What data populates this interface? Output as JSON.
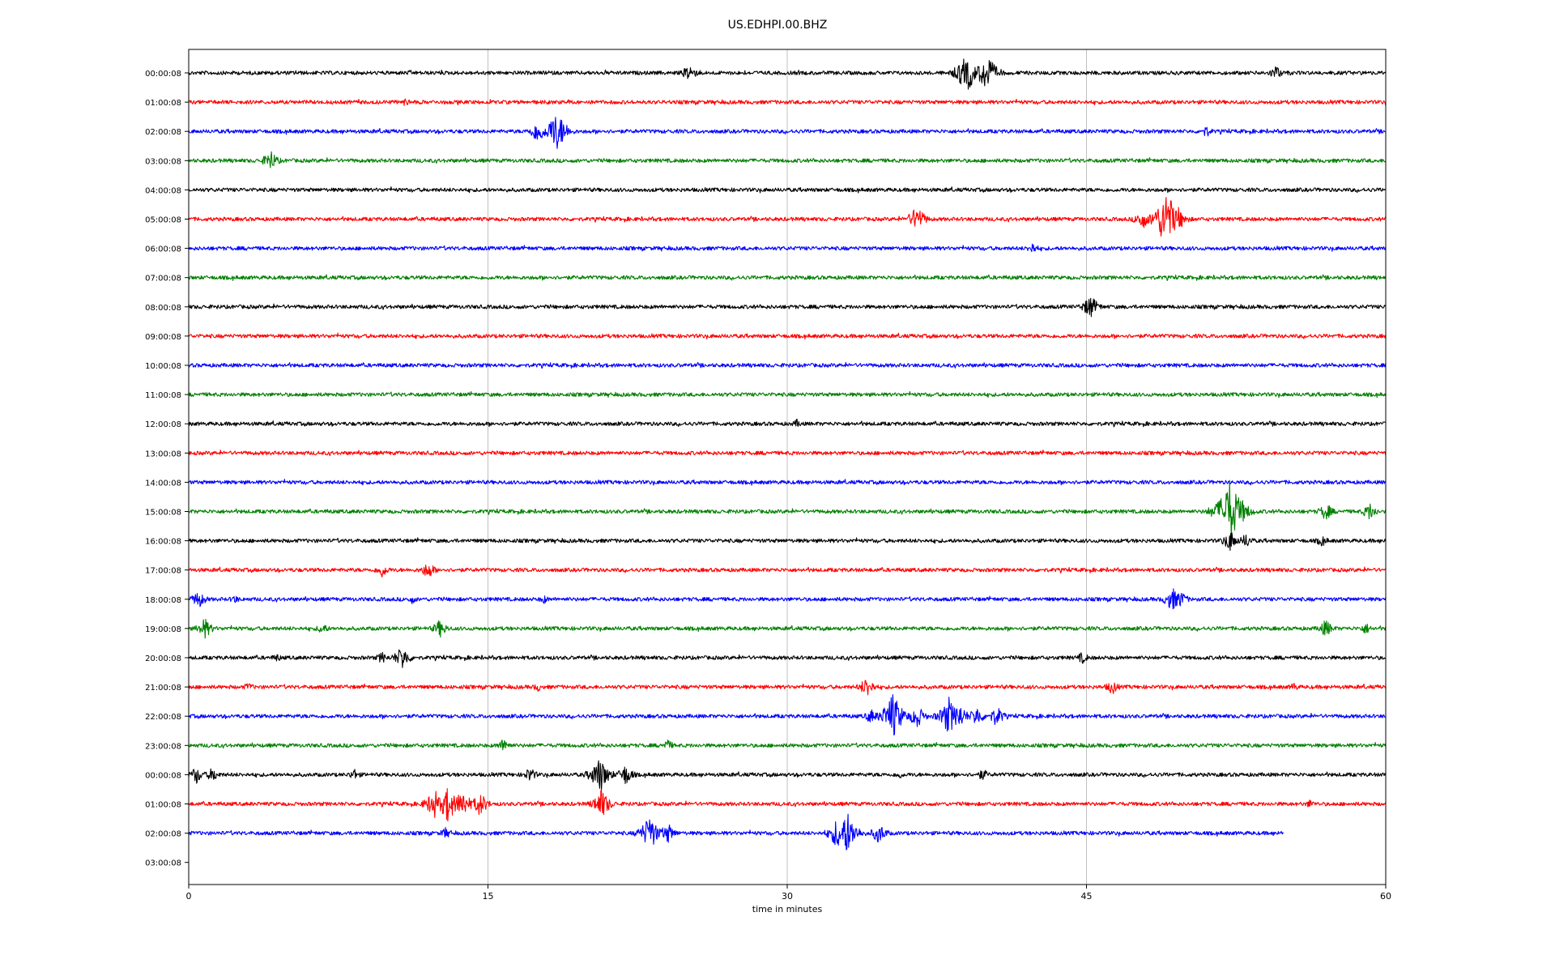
{
  "chart_data": {
    "type": "line",
    "title": "US.EDHPI.00.BHZ",
    "xlabel": "time in minutes",
    "ylabel": "",
    "xlim": [
      0,
      60
    ],
    "x_ticks": [
      0,
      15,
      30,
      45,
      60
    ],
    "grid": "vertical",
    "row_labels": [
      "00:00:08",
      "01:00:08",
      "02:00:08",
      "03:00:08",
      "04:00:08",
      "05:00:08",
      "06:00:08",
      "07:00:08",
      "08:00:08",
      "09:00:08",
      "10:00:08",
      "11:00:08",
      "12:00:08",
      "13:00:08",
      "14:00:08",
      "15:00:08",
      "16:00:08",
      "17:00:08",
      "18:00:08",
      "19:00:08",
      "20:00:08",
      "21:00:08",
      "22:00:08",
      "23:00:08",
      "00:00:08",
      "01:00:08",
      "02:00:08",
      "03:00:08"
    ],
    "row_color_cycle": [
      "#000000",
      "#ff0000",
      "#0000ff",
      "#008000"
    ],
    "traces": [
      {
        "row": 0,
        "end_minute": 60,
        "events": [
          [
            25.1,
            0.6
          ],
          [
            38.8,
            1.0
          ],
          [
            39.1,
            1.1
          ],
          [
            40.0,
            1.3
          ],
          [
            54.5,
            0.5
          ]
        ]
      },
      {
        "row": 1,
        "end_minute": 60,
        "events": [
          [
            10.9,
            0.3
          ]
        ]
      },
      {
        "row": 2,
        "end_minute": 60,
        "events": [
          [
            17.5,
            0.8
          ],
          [
            18.4,
            1.3
          ],
          [
            18.7,
            0.9
          ],
          [
            51.0,
            0.4
          ]
        ]
      },
      {
        "row": 3,
        "end_minute": 60,
        "events": [
          [
            4.1,
            0.7
          ]
        ]
      },
      {
        "row": 4,
        "end_minute": 60,
        "events": []
      },
      {
        "row": 5,
        "end_minute": 60,
        "events": [
          [
            36.5,
            0.9
          ],
          [
            47.8,
            0.7
          ],
          [
            49.0,
            1.9
          ],
          [
            49.6,
            0.8
          ]
        ]
      },
      {
        "row": 6,
        "end_minute": 60,
        "events": [
          [
            42.3,
            0.4
          ]
        ]
      },
      {
        "row": 7,
        "end_minute": 60,
        "events": []
      },
      {
        "row": 8,
        "end_minute": 60,
        "events": [
          [
            45.2,
            0.8
          ]
        ]
      },
      {
        "row": 9,
        "end_minute": 60,
        "events": []
      },
      {
        "row": 10,
        "end_minute": 60,
        "events": []
      },
      {
        "row": 11,
        "end_minute": 60,
        "events": []
      },
      {
        "row": 12,
        "end_minute": 60,
        "events": [
          [
            30.5,
            0.3
          ]
        ]
      },
      {
        "row": 13,
        "end_minute": 60,
        "events": []
      },
      {
        "row": 14,
        "end_minute": 60,
        "events": []
      },
      {
        "row": 15,
        "end_minute": 60,
        "events": [
          [
            51.8,
            0.9
          ],
          [
            52.2,
            2.1
          ],
          [
            52.8,
            0.8
          ],
          [
            57.0,
            0.6
          ],
          [
            59.2,
            0.6
          ]
        ]
      },
      {
        "row": 16,
        "end_minute": 60,
        "events": [
          [
            52.2,
            0.7
          ],
          [
            53.0,
            0.5
          ],
          [
            56.8,
            0.4
          ]
        ]
      },
      {
        "row": 17,
        "end_minute": 60,
        "events": [
          [
            9.7,
            0.5
          ],
          [
            12.0,
            0.6
          ]
        ]
      },
      {
        "row": 18,
        "end_minute": 60,
        "events": [
          [
            0.5,
            0.6
          ],
          [
            2.3,
            0.3
          ],
          [
            11.2,
            0.3
          ],
          [
            17.8,
            0.3
          ],
          [
            49.3,
            0.8
          ],
          [
            49.7,
            0.6
          ]
        ]
      },
      {
        "row": 19,
        "end_minute": 60,
        "events": [
          [
            0.8,
            0.7
          ],
          [
            6.7,
            0.4
          ],
          [
            12.6,
            0.6
          ],
          [
            57.0,
            0.6
          ],
          [
            59.0,
            0.4
          ]
        ]
      },
      {
        "row": 20,
        "end_minute": 60,
        "events": [
          [
            4.4,
            0.3
          ],
          [
            9.7,
            0.4
          ],
          [
            10.7,
            0.8
          ],
          [
            44.8,
            0.4
          ]
        ]
      },
      {
        "row": 21,
        "end_minute": 60,
        "events": [
          [
            3.0,
            0.3
          ],
          [
            17.5,
            0.3
          ],
          [
            34.0,
            0.7
          ],
          [
            46.3,
            0.5
          ],
          [
            55.4,
            0.3
          ]
        ]
      },
      {
        "row": 22,
        "end_minute": 60,
        "events": [
          [
            34.2,
            0.5
          ],
          [
            35.3,
            1.5
          ],
          [
            36.5,
            0.8
          ],
          [
            38.1,
            1.2
          ],
          [
            38.6,
            0.9
          ],
          [
            39.5,
            0.7
          ],
          [
            40.5,
            0.7
          ]
        ]
      },
      {
        "row": 23,
        "end_minute": 60,
        "events": [
          [
            15.8,
            0.5
          ],
          [
            24.0,
            0.4
          ]
        ]
      },
      {
        "row": 24,
        "end_minute": 60,
        "events": [
          [
            0.4,
            0.6
          ],
          [
            1.2,
            0.5
          ],
          [
            8.3,
            0.4
          ],
          [
            17.1,
            0.5
          ],
          [
            20.6,
            1.2
          ],
          [
            21.9,
            0.7
          ],
          [
            35.6,
            0.3
          ],
          [
            39.8,
            0.4
          ]
        ]
      },
      {
        "row": 25,
        "end_minute": 60,
        "events": [
          [
            12.3,
            1.0
          ],
          [
            13.0,
            1.2
          ],
          [
            13.7,
            1.0
          ],
          [
            14.6,
            0.8
          ],
          [
            20.7,
            1.0
          ],
          [
            56.2,
            0.3
          ]
        ]
      },
      {
        "row": 26,
        "end_minute": 54.9,
        "events": [
          [
            12.9,
            0.4
          ],
          [
            23.1,
            1.2
          ],
          [
            24.0,
            0.7
          ],
          [
            32.5,
            1.0
          ],
          [
            33.0,
            1.4
          ],
          [
            34.6,
            0.7
          ]
        ]
      },
      {
        "row": 27,
        "end_minute": 0,
        "events": []
      }
    ]
  }
}
